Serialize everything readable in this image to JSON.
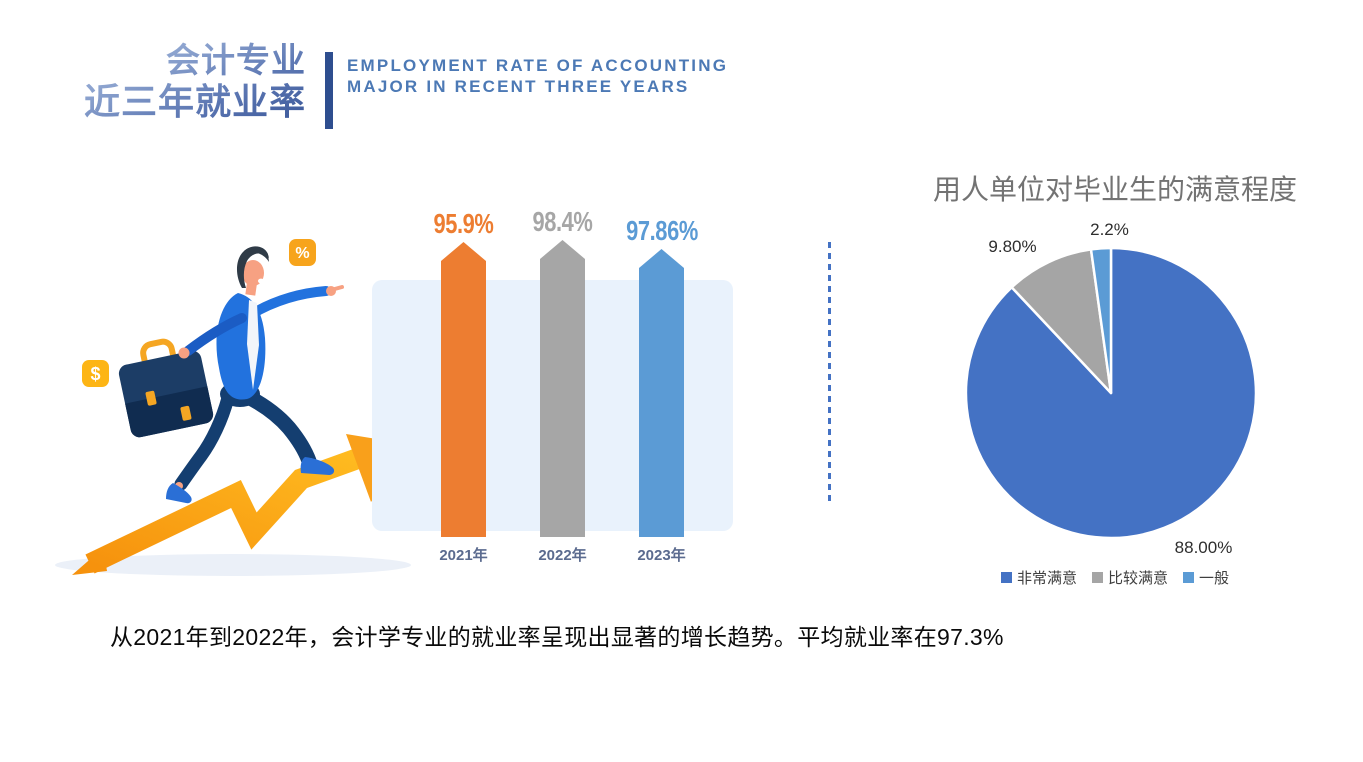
{
  "header": {
    "title_cn_line1": "会计专业",
    "title_cn_line2": "近三年就业率",
    "title_en_line1": "EMPLOYMENT RATE OF ACCOUNTING",
    "title_en_line2": "MAJOR IN RECENT THREE YEARS"
  },
  "footer": {
    "text": "从2021年到2022年，会计学专业的就业率呈现出显著的增长趋势。平均就业率在97.3%"
  },
  "illustration": {
    "dollar_symbol": "$",
    "percent_symbol": "%",
    "arrow_color": "#F9A01B",
    "shirt_color": "#2272DE",
    "pants_color": "#143E70",
    "briefcase_color": "#1C3D66",
    "badge_dollar_color": "#FDB515",
    "badge_percent_color": "#F7A41C"
  },
  "palette": {
    "title_divider": "#2E4E8F",
    "title_en_text": "#4C79B5",
    "bar_panel_bg": "#E9F2FC",
    "section_divider_dash": "#4472C4",
    "year_label_text": "#5B6B8F",
    "pie_title_text": "#737373",
    "legend_text": "#3F3F3F"
  },
  "chart_data": [
    {
      "type": "bar",
      "title": "",
      "categories": [
        "2021年",
        "2022年",
        "2023年"
      ],
      "values": [
        95.9,
        98.4,
        97.86
      ],
      "value_labels": [
        "95.9%",
        "98.4%",
        "97.86%"
      ],
      "colors": [
        "#ED7D31",
        "#A6A6A6",
        "#5B9BD5"
      ],
      "xlabel": "",
      "ylabel": "",
      "ylim": [
        0,
        100
      ],
      "grid": false,
      "legend_position": "none",
      "note": "decorative pennant-shaped bars over a light blue rounded panel"
    },
    {
      "type": "pie",
      "title": "用人单位对毕业生的满意程度",
      "labels": [
        "非常满意",
        "比较满意",
        "一般"
      ],
      "values": [
        88.0,
        9.8,
        2.2
      ],
      "value_labels": [
        "88.00%",
        "9.80%",
        "2.2%"
      ],
      "colors": [
        "#4472C4",
        "#A5A5A5",
        "#5B9BD5"
      ],
      "start_angle_deg": 0,
      "direction": "clockwise",
      "legend_position": "bottom"
    }
  ]
}
